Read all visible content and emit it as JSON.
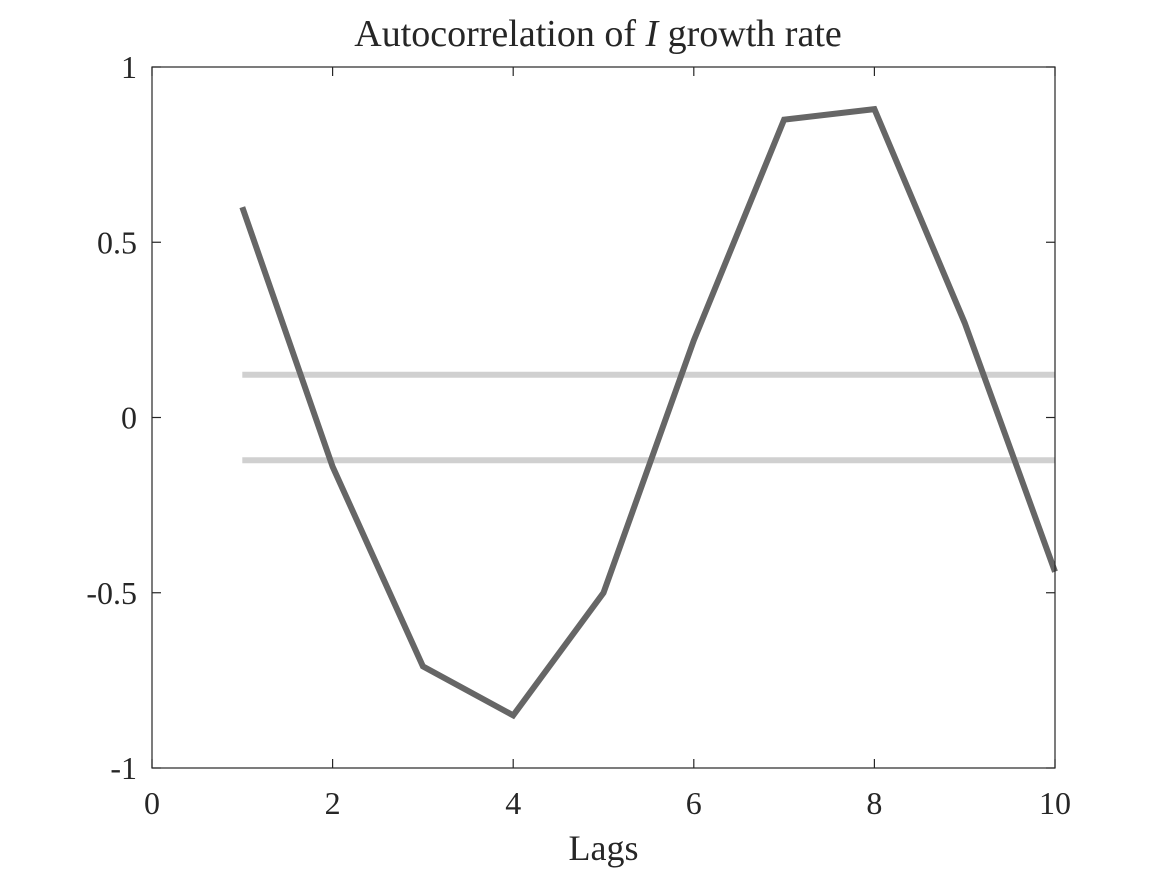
{
  "chart_data": {
    "type": "line",
    "title_prefix": "Autocorrelation of ",
    "title_var": "I",
    "title_suffix": " growth rate",
    "xlabel": "Lags",
    "ylabel": "",
    "xlim": [
      0,
      10
    ],
    "ylim": [
      -1,
      1
    ],
    "xticks": [
      0,
      2,
      4,
      6,
      8,
      10
    ],
    "yticks": [
      1,
      0.5,
      0,
      -0.5,
      -1
    ],
    "ytick_labels": [
      "1",
      "0.5",
      "0",
      "-0.5",
      "-1"
    ],
    "grid": false,
    "series": [
      {
        "color": "#666666",
        "x": [
          1,
          2,
          3,
          4,
          5,
          6,
          7,
          8,
          9,
          10
        ],
        "values": [
          0.6,
          -0.14,
          -0.71,
          -0.85,
          -0.5,
          0.22,
          0.85,
          0.88,
          0.27,
          -0.44
        ]
      }
    ],
    "bounds": [
      {
        "color": "#d0d0d0",
        "x_start": 1,
        "x_end": 10,
        "value": 0.122
      },
      {
        "color": "#d0d0d0",
        "x_start": 1,
        "x_end": 10,
        "value": -0.122
      }
    ]
  }
}
